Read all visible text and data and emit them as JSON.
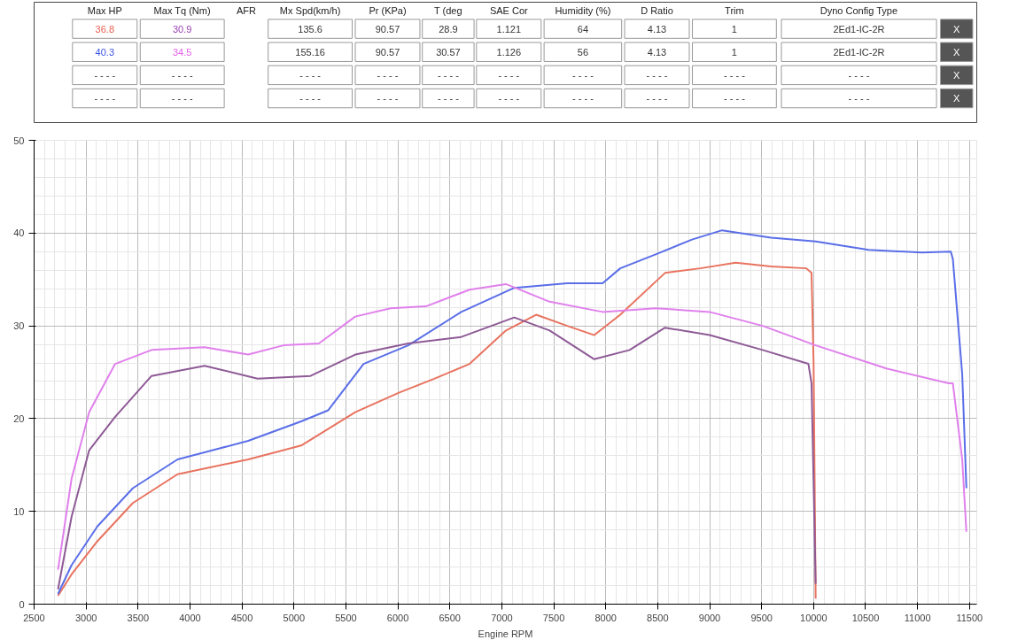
{
  "chart_data": [
    {
      "type": "other",
      "categories": [
        "Max HP",
        "Max Tq (Nm)",
        "AFR",
        "Mx Spd(km/h)",
        "Pr (KPa)",
        "T (deg",
        "SAE Cor",
        "Humidity (%)",
        "D Ratio",
        "Trim",
        "Dyno Config Type",
        null
      ],
      "cell_labels": [
        [
          "36.8",
          "30.9",
          null,
          "135.6",
          "90.57",
          "28.9",
          "1.121",
          "64",
          "4.13",
          "1",
          "2Ed1-IC-2R",
          "X"
        ],
        [
          "40.3",
          "34.5",
          null,
          "155.16",
          "90.57",
          "30.57",
          "1.126",
          "56",
          "4.13",
          "1",
          "2Ed1-IC-2R",
          "X"
        ],
        [
          "- - - -",
          "- - - -",
          null,
          "- - - -",
          "- - - -",
          "- - - -",
          "- - - -",
          "- - - -",
          "- - - -",
          "- - - -",
          "- - - -",
          "X"
        ],
        [
          "- - - -",
          "- - - -",
          null,
          "- - - -",
          "- - - -",
          "- - - -",
          "- - - -",
          "- - - -",
          "- - - -",
          "- - - -",
          "- - - -",
          "X"
        ]
      ],
      "colors": [
        "#e8604f",
        "#9a3fb0",
        "#3a52e8",
        "#e45ce8"
      ]
    },
    {
      "type": "line",
      "xlabel": "Engine RPM",
      "xlim": [
        2500,
        11570
      ],
      "ylim": [
        0,
        50
      ],
      "xticks": [
        2500,
        3000,
        3500,
        4000,
        4500,
        5000,
        5500,
        6000,
        6500,
        7000,
        7500,
        8000,
        8500,
        9000,
        9500,
        10000,
        10500,
        11000,
        11500
      ],
      "yticks": [
        0,
        10,
        20,
        30,
        40,
        50
      ],
      "grid": true,
      "marker": "none",
      "line_style": "solid",
      "series": [
        {
          "color": "#e8735f",
          "x": [
            2730,
            2860,
            3110,
            3450,
            3880,
            4560,
            5070,
            5590,
            6010,
            6350,
            6690,
            7040,
            7330,
            7630,
            7890,
            8140,
            8570,
            8910,
            9250,
            9590,
            9930,
            9980,
            10000,
            10020
          ],
          "values": [
            0.9,
            3.2,
            6.8,
            10.9,
            14.0,
            15.6,
            17.1,
            20.7,
            22.8,
            24.3,
            25.9,
            29.5,
            31.2,
            30.0,
            29.0,
            31.2,
            35.7,
            36.2,
            36.8,
            36.4,
            36.2,
            35.7,
            25.9,
            0.6
          ]
        },
        {
          "color": "#5a6ee8",
          "x": [
            2730,
            2860,
            3110,
            3450,
            3880,
            4560,
            5070,
            5330,
            5670,
            6100,
            6610,
            7120,
            7630,
            7970,
            8140,
            8480,
            8830,
            9120,
            9590,
            10020,
            10530,
            11040,
            11320,
            11340,
            11430,
            11470
          ],
          "values": [
            1.1,
            4.2,
            8.4,
            12.5,
            15.6,
            17.6,
            19.7,
            20.9,
            25.9,
            27.9,
            31.5,
            34.1,
            34.6,
            34.6,
            36.2,
            37.7,
            39.3,
            40.3,
            39.5,
            39.1,
            38.2,
            37.9,
            38.0,
            37.2,
            24.8,
            12.5
          ]
        },
        {
          "color": "#8e5a96",
          "x": [
            2730,
            2860,
            3030,
            3280,
            3630,
            4140,
            4650,
            5160,
            5590,
            6100,
            6610,
            7120,
            7460,
            7890,
            8230,
            8570,
            9000,
            9510,
            9950,
            9980,
            10020
          ],
          "values": [
            1.6,
            9.4,
            16.6,
            20.2,
            24.6,
            25.7,
            24.3,
            24.6,
            26.9,
            28.1,
            28.8,
            30.9,
            29.5,
            26.4,
            27.4,
            29.8,
            29.0,
            27.4,
            25.9,
            23.8,
            2.2
          ]
        },
        {
          "color": "#e080ec",
          "x": [
            2730,
            2860,
            3030,
            3280,
            3630,
            4140,
            4560,
            4900,
            5240,
            5590,
            5930,
            6270,
            6690,
            7040,
            7460,
            7970,
            8480,
            9000,
            9510,
            10020,
            10700,
            11300,
            11340,
            11430,
            11470
          ],
          "values": [
            3.7,
            13.5,
            20.7,
            25.9,
            27.4,
            27.7,
            26.9,
            27.9,
            28.1,
            31.0,
            31.9,
            32.1,
            33.9,
            34.5,
            32.6,
            31.5,
            31.9,
            31.5,
            30.0,
            27.9,
            25.4,
            23.8,
            23.8,
            15.6,
            7.8
          ]
        }
      ]
    }
  ]
}
